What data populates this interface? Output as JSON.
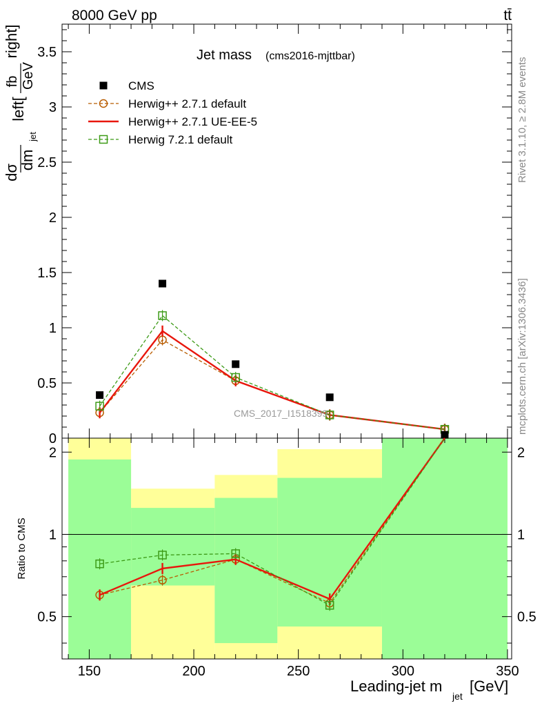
{
  "header": {
    "left": "8000 GeV pp",
    "right": "tt̄"
  },
  "side_labels": {
    "rivet": "Rivet 3.1.10, ≥ 2.8M events",
    "mcplots": "mcplots.cern.ch [arXiv:1306.3436]"
  },
  "chart_data": [
    {
      "type": "scatter",
      "panel": "main",
      "title": "Jet mass",
      "subtitle": "(cms2016-mjttbar)",
      "ylabel": "dσ/dm_jet left[fb/GeV right]",
      "ylabel_parts": {
        "num": "dσ",
        "den": "dm",
        "den_sub": "jet",
        "left": "left[",
        "frac_num": "fb",
        "frac_den": "GeV",
        "right": "right]"
      },
      "watermark": "CMS_2017_I1518399",
      "xlim": [
        137,
        352
      ],
      "ylim": [
        0,
        3.75
      ],
      "yticks": [
        0,
        0.5,
        1,
        1.5,
        2,
        2.5,
        3,
        3.5
      ],
      "ytick_labels": [
        "0",
        "0.5",
        "1",
        "1.5",
        "2",
        "2.5",
        "3",
        "3.5"
      ],
      "legend_position": "top-left",
      "x": [
        155,
        185,
        220,
        265,
        320
      ],
      "series": [
        {
          "name": "CMS",
          "color": "#000000",
          "marker": "square-filled",
          "values": [
            0.39,
            1.4,
            0.67,
            0.37,
            0.03
          ]
        },
        {
          "name": "Herwig++ 2.7.1 default",
          "color": "#b85c00",
          "marker": "circle-open",
          "dashed": true,
          "values": [
            0.23,
            0.89,
            0.52,
            0.21,
            0.08
          ]
        },
        {
          "name": "Herwig++ 2.7.1 UE-EE-5",
          "color": "#e8160c",
          "marker": "none",
          "values": [
            0.23,
            0.97,
            0.52,
            0.21,
            0.08
          ]
        },
        {
          "name": "Herwig 7.2.1 default",
          "color": "#3c9a16",
          "marker": "square-open",
          "dashed": true,
          "values": [
            0.29,
            1.11,
            0.55,
            0.21,
            0.08
          ]
        }
      ]
    },
    {
      "type": "line",
      "panel": "ratio",
      "ylabel": "Ratio to CMS",
      "xlabel": "Leading-jet m",
      "xlabel_sub": "jet",
      "xlabel_unit": "[GeV]",
      "xlim": [
        137,
        352
      ],
      "ylim": [
        0.35,
        2.25
      ],
      "yticks": [
        0.5,
        1,
        2
      ],
      "ytick_labels": [
        "0.5",
        "1",
        "2"
      ],
      "xticks": [
        150,
        200,
        250,
        300,
        350
      ],
      "xtick_labels": [
        "150",
        "200",
        "250",
        "300",
        "350"
      ],
      "reference_line": 1,
      "bands": [
        {
          "x": [
            140,
            170
          ],
          "green": [
            0.35,
            1.88
          ],
          "yellow": [
            0.35,
            2.25
          ]
        },
        {
          "x": [
            170,
            210
          ],
          "green": [
            0.65,
            1.25
          ],
          "yellow": [
            0.35,
            1.47
          ]
        },
        {
          "x": [
            210,
            240
          ],
          "green": [
            0.4,
            1.36
          ],
          "yellow": [
            0.35,
            1.65
          ]
        },
        {
          "x": [
            240,
            290
          ],
          "green": [
            0.46,
            1.61
          ],
          "yellow": [
            0.35,
            2.05
          ]
        },
        {
          "x": [
            290,
            350
          ],
          "green": [
            0.35,
            2.25
          ],
          "yellow": [
            0.35,
            2.25
          ]
        }
      ],
      "x": [
        155,
        185,
        220,
        265,
        320
      ],
      "series": [
        {
          "name": "Herwig++ 2.7.1 default",
          "color": "#b85c00",
          "marker": "circle-open",
          "dashed": true,
          "values": [
            0.6,
            0.68,
            0.81,
            0.56,
            2.25
          ]
        },
        {
          "name": "Herwig++ 2.7.1 UE-EE-5",
          "color": "#e8160c",
          "marker": "none",
          "values": [
            0.6,
            0.75,
            0.81,
            0.58,
            2.25
          ]
        },
        {
          "name": "Herwig 7.2.1 default",
          "color": "#3c9a16",
          "marker": "square-open",
          "dashed": true,
          "values": [
            0.78,
            0.84,
            0.85,
            0.55,
            2.25
          ]
        }
      ]
    }
  ]
}
